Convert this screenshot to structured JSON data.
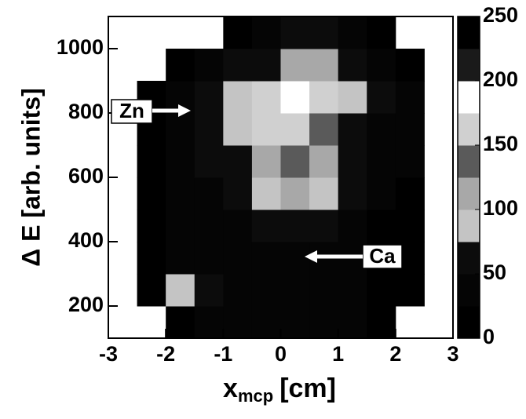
{
  "chart_data": {
    "type": "heatmap",
    "x_label": "x",
    "x_label_sub": "mcp",
    "x_label_unit": "[cm]",
    "y_label": "Δ E [arb. units]",
    "annotations": [
      "Zn",
      "Ca"
    ],
    "xlim": [
      -3,
      3
    ],
    "xticks": [
      -3,
      -2,
      -1,
      0,
      1,
      2,
      3
    ],
    "ylim": [
      100,
      1100
    ],
    "yticks": [
      200,
      400,
      600,
      800,
      1000
    ],
    "x_bins": [
      -3,
      -2.5,
      -2,
      -1.5,
      -1,
      -0.5,
      0,
      0.5,
      1,
      1.5,
      2,
      2.5,
      3
    ],
    "y_bins": [
      100,
      200,
      300,
      400,
      500,
      600,
      700,
      800,
      900,
      1000,
      1100
    ],
    "z": [
      [
        null,
        null,
        20,
        30,
        30,
        30,
        35,
        30,
        25,
        10,
        null,
        null
      ],
      [
        null,
        10,
        80,
        50,
        30,
        30,
        40,
        35,
        30,
        15,
        5,
        null
      ],
      [
        null,
        10,
        40,
        35,
        30,
        30,
        40,
        40,
        30,
        20,
        10,
        null
      ],
      [
        null,
        10,
        30,
        40,
        45,
        55,
        60,
        50,
        35,
        20,
        10,
        null
      ],
      [
        null,
        10,
        35,
        45,
        60,
        90,
        100,
        80,
        50,
        35,
        15,
        null
      ],
      [
        null,
        15,
        40,
        50,
        70,
        120,
        130,
        110,
        60,
        40,
        25,
        null
      ],
      [
        null,
        15,
        40,
        50,
        85,
        150,
        170,
        140,
        70,
        45,
        30,
        null
      ],
      [
        null,
        10,
        35,
        50,
        90,
        160,
        185,
        170,
        80,
        50,
        30,
        null
      ],
      [
        null,
        null,
        15,
        30,
        50,
        70,
        110,
        110,
        60,
        40,
        20,
        null
      ],
      [
        null,
        null,
        null,
        null,
        20,
        40,
        50,
        50,
        40,
        20,
        null,
        null
      ]
    ],
    "clim": [
      0,
      250
    ],
    "cticks": [
      0,
      50,
      100,
      150,
      200,
      250
    ],
    "colors": [
      "#000000",
      "#050505",
      "#0c0c0c",
      "#c4c4c4",
      "#a8a8a8",
      "#5a5a5a",
      "#d0d0d0",
      "#ffffff",
      "#1a1a1a",
      "#000000"
    ]
  }
}
